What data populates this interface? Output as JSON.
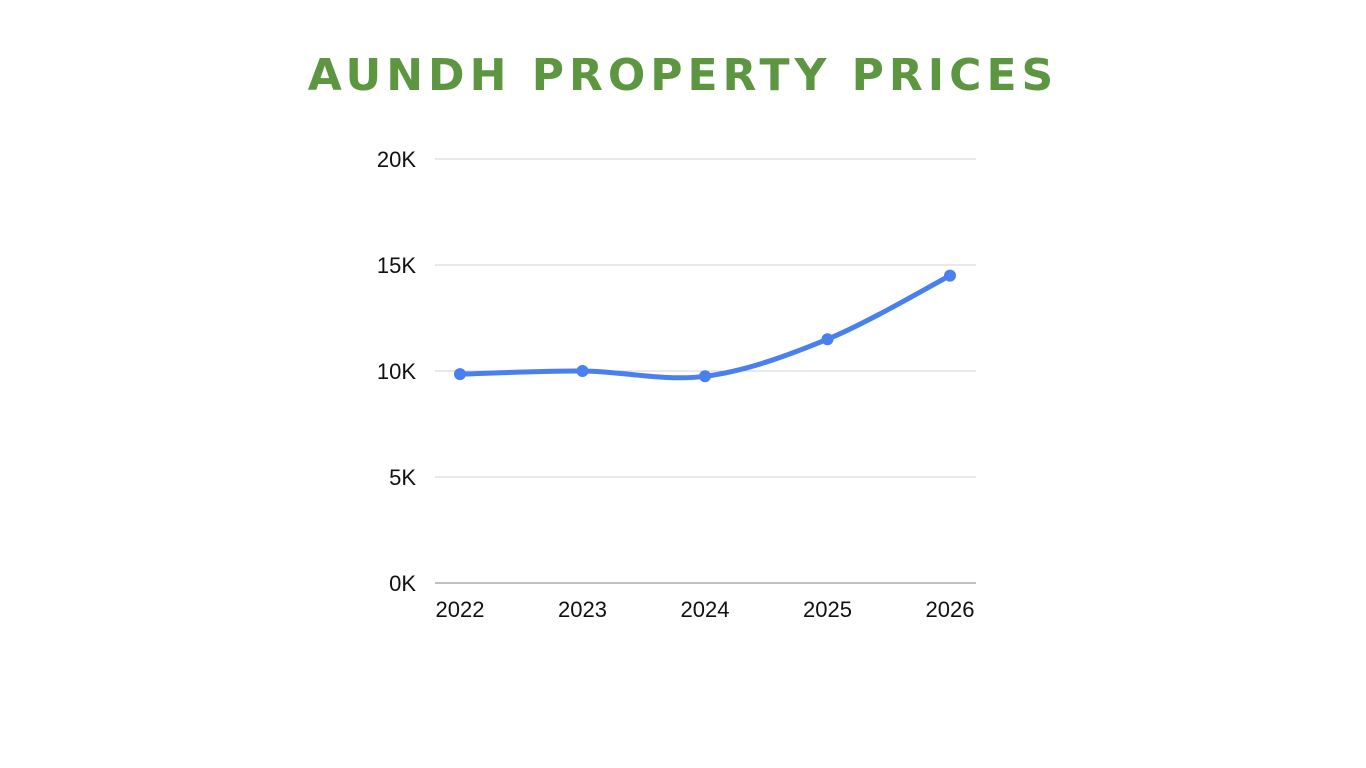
{
  "colors": {
    "title": "#5c9641",
    "line": "#4a7ff0",
    "gridline": "#d0d0d0",
    "baseline": "#808080"
  },
  "chart_data": {
    "type": "line",
    "title": "AUNDH PROPERTY PRICES",
    "xlabel": "",
    "ylabel": "",
    "categories": [
      "2022",
      "2023",
      "2024",
      "2025",
      "2026"
    ],
    "series": [
      {
        "values": [
          9850,
          10000,
          9750,
          11500,
          14500
        ]
      }
    ],
    "ylim": [
      0,
      20000
    ],
    "yticks": [
      0,
      5000,
      10000,
      15000,
      20000
    ],
    "ytick_labels": [
      "0K",
      "5K",
      "10K",
      "15K",
      "20K"
    ],
    "grid": true,
    "legend": "none",
    "smooth": true,
    "markers": true
  }
}
